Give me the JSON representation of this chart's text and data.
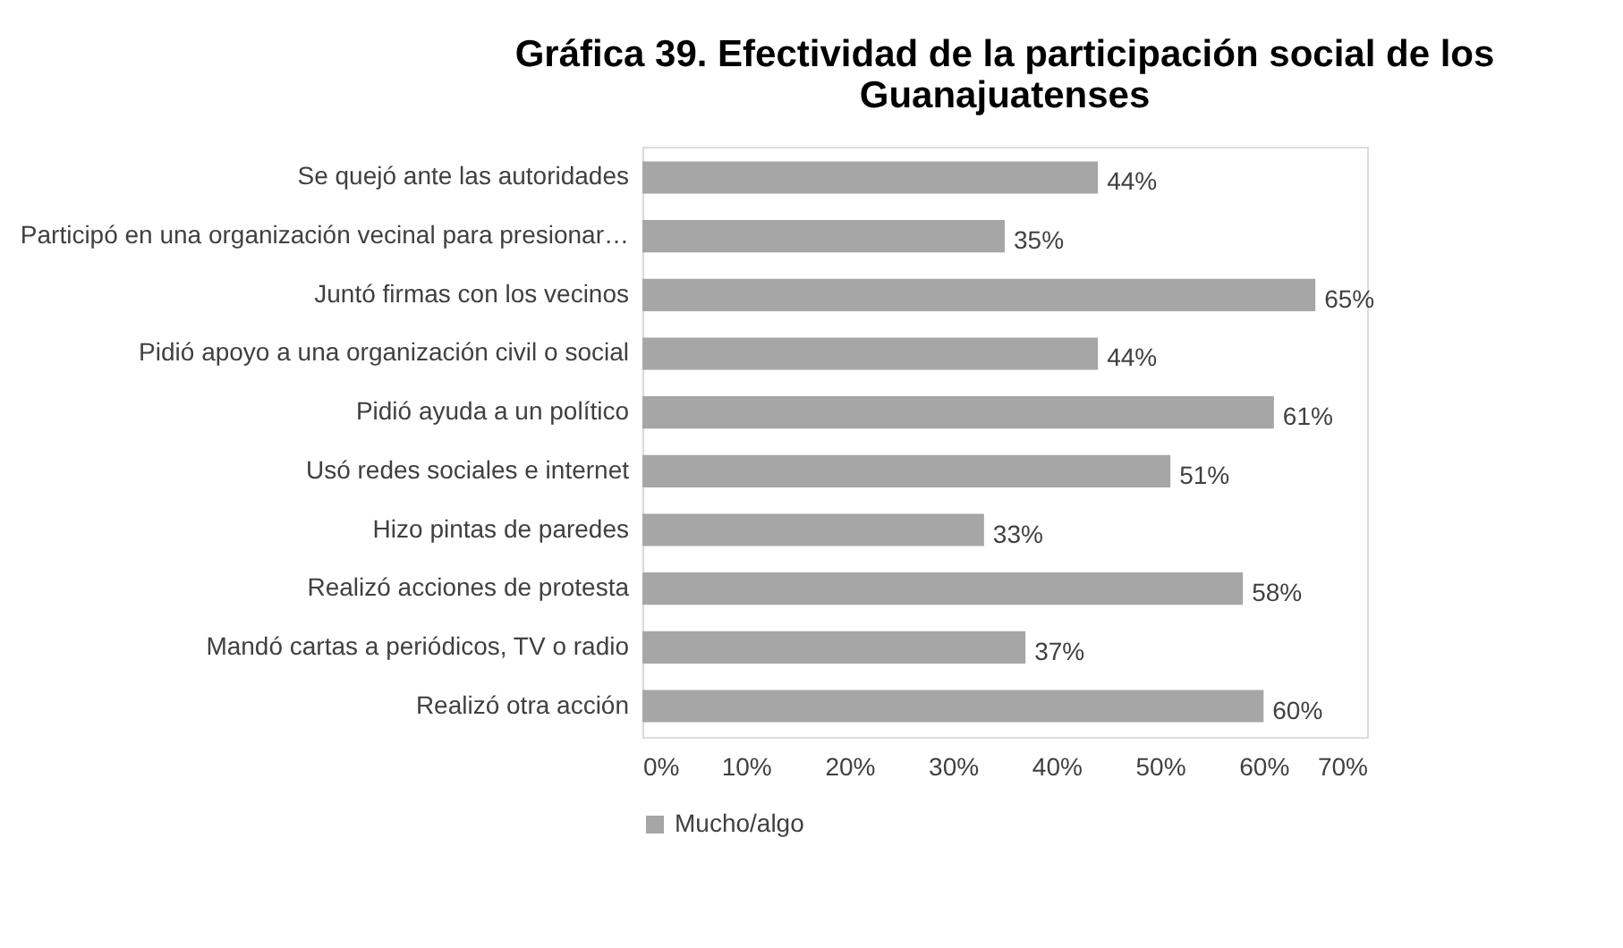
{
  "chart_data": {
    "type": "bar",
    "orientation": "horizontal",
    "title": "Gráfica 39. Efectividad de la participación social de los Guanajuatenses",
    "categories": [
      "Se quejó ante las autoridades",
      "Participó en una organización vecinal para presionar…",
      "Juntó firmas con los vecinos",
      "Pidió apoyo a una organización civil o social",
      "Pidió ayuda a un político",
      "Usó redes sociales e internet",
      "Hizo pintas de paredes",
      "Realizó acciones de protesta",
      "Mandó cartas a periódicos, TV o radio",
      "Realizó otra acción"
    ],
    "series": [
      {
        "name": "Mucho/algo",
        "color": "#a6a6a6",
        "values": [
          44,
          35,
          65,
          44,
          61,
          51,
          33,
          58,
          37,
          60
        ],
        "value_labels": [
          "44%",
          "35%",
          "65%",
          "44%",
          "61%",
          "51%",
          "33%",
          "58%",
          "37%",
          "60%"
        ]
      }
    ],
    "xlim": [
      0,
      70
    ],
    "xticks": [
      {
        "value": 0,
        "label": "0%"
      },
      {
        "value": 10,
        "label": "10%"
      },
      {
        "value": 20,
        "label": "20%"
      },
      {
        "value": 30,
        "label": "30%"
      },
      {
        "value": 40,
        "label": "40%"
      },
      {
        "value": 50,
        "label": "50%"
      },
      {
        "value": 60,
        "label": "60%"
      },
      {
        "value": 70,
        "label": "70%"
      }
    ],
    "grid": false,
    "legend": "bottom"
  }
}
